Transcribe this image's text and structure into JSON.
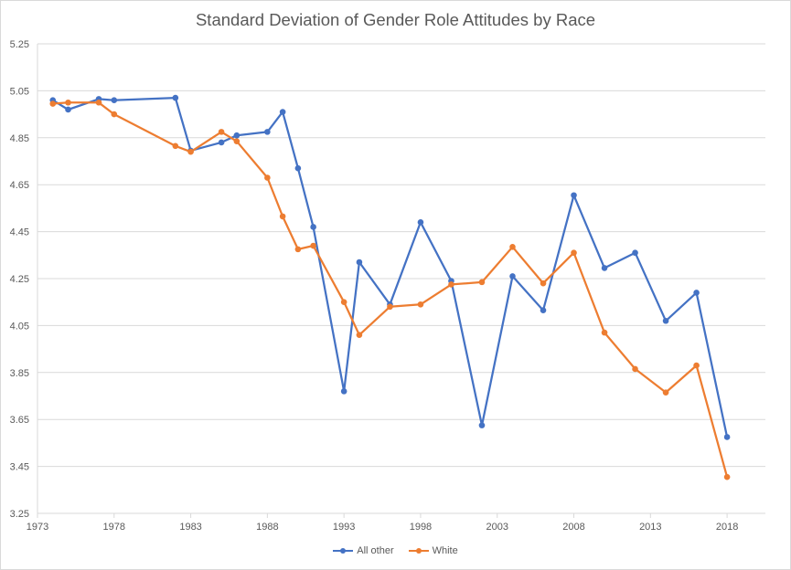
{
  "chart_data": {
    "type": "line",
    "title": "Standard Deviation of Gender Role Attitudes by Race",
    "xlabel": "",
    "ylabel": "",
    "xlim": [
      1973,
      2020.5
    ],
    "ylim": [
      3.25,
      5.25
    ],
    "x_ticks": [
      "1973",
      "1978",
      "1983",
      "1988",
      "1993",
      "1998",
      "2003",
      "2008",
      "2013",
      "2018"
    ],
    "y_ticks": [
      "5.25",
      "5.05",
      "4.85",
      "4.65",
      "4.45",
      "4.25",
      "4.05",
      "3.85",
      "3.65",
      "3.45",
      "3.25"
    ],
    "grid": "horizontal",
    "legend_position": "bottom",
    "series": [
      {
        "name": "All other",
        "color": "#4472c4",
        "points": [
          [
            1974,
            5.01
          ],
          [
            1975,
            4.97
          ],
          [
            1977,
            5.015
          ],
          [
            1978,
            5.01
          ],
          [
            1982,
            5.02
          ],
          [
            1983,
            4.795
          ],
          [
            1985,
            4.83
          ],
          [
            1986,
            4.86
          ],
          [
            1988,
            4.875
          ],
          [
            1989,
            4.96
          ],
          [
            1990,
            4.72
          ],
          [
            1991,
            4.47
          ],
          [
            1993,
            3.77
          ],
          [
            1994,
            4.32
          ],
          [
            1996,
            4.14
          ],
          [
            1998,
            4.49
          ],
          [
            2000,
            4.24
          ],
          [
            2002,
            3.625
          ],
          [
            2004,
            4.26
          ],
          [
            2006,
            4.115
          ],
          [
            2008,
            4.605
          ],
          [
            2010,
            4.295
          ],
          [
            2012,
            4.36
          ],
          [
            2014,
            4.07
          ],
          [
            2016,
            4.19
          ],
          [
            2018,
            3.575
          ]
        ]
      },
      {
        "name": "White",
        "color": "#ed7d31",
        "points": [
          [
            1974,
            4.995
          ],
          [
            1975,
            5.0
          ],
          [
            1977,
            5.0
          ],
          [
            1978,
            4.95
          ],
          [
            1982,
            4.815
          ],
          [
            1983,
            4.79
          ],
          [
            1985,
            4.875
          ],
          [
            1986,
            4.835
          ],
          [
            1988,
            4.68
          ],
          [
            1989,
            4.515
          ],
          [
            1990,
            4.375
          ],
          [
            1991,
            4.39
          ],
          [
            1993,
            4.15
          ],
          [
            1994,
            4.01
          ],
          [
            1996,
            4.13
          ],
          [
            1998,
            4.14
          ],
          [
            2000,
            4.225
          ],
          [
            2002,
            4.235
          ],
          [
            2004,
            4.385
          ],
          [
            2006,
            4.23
          ],
          [
            2008,
            4.36
          ],
          [
            2010,
            4.02
          ],
          [
            2012,
            3.865
          ],
          [
            2014,
            3.765
          ],
          [
            2016,
            3.88
          ],
          [
            2018,
            3.405
          ]
        ]
      }
    ]
  }
}
